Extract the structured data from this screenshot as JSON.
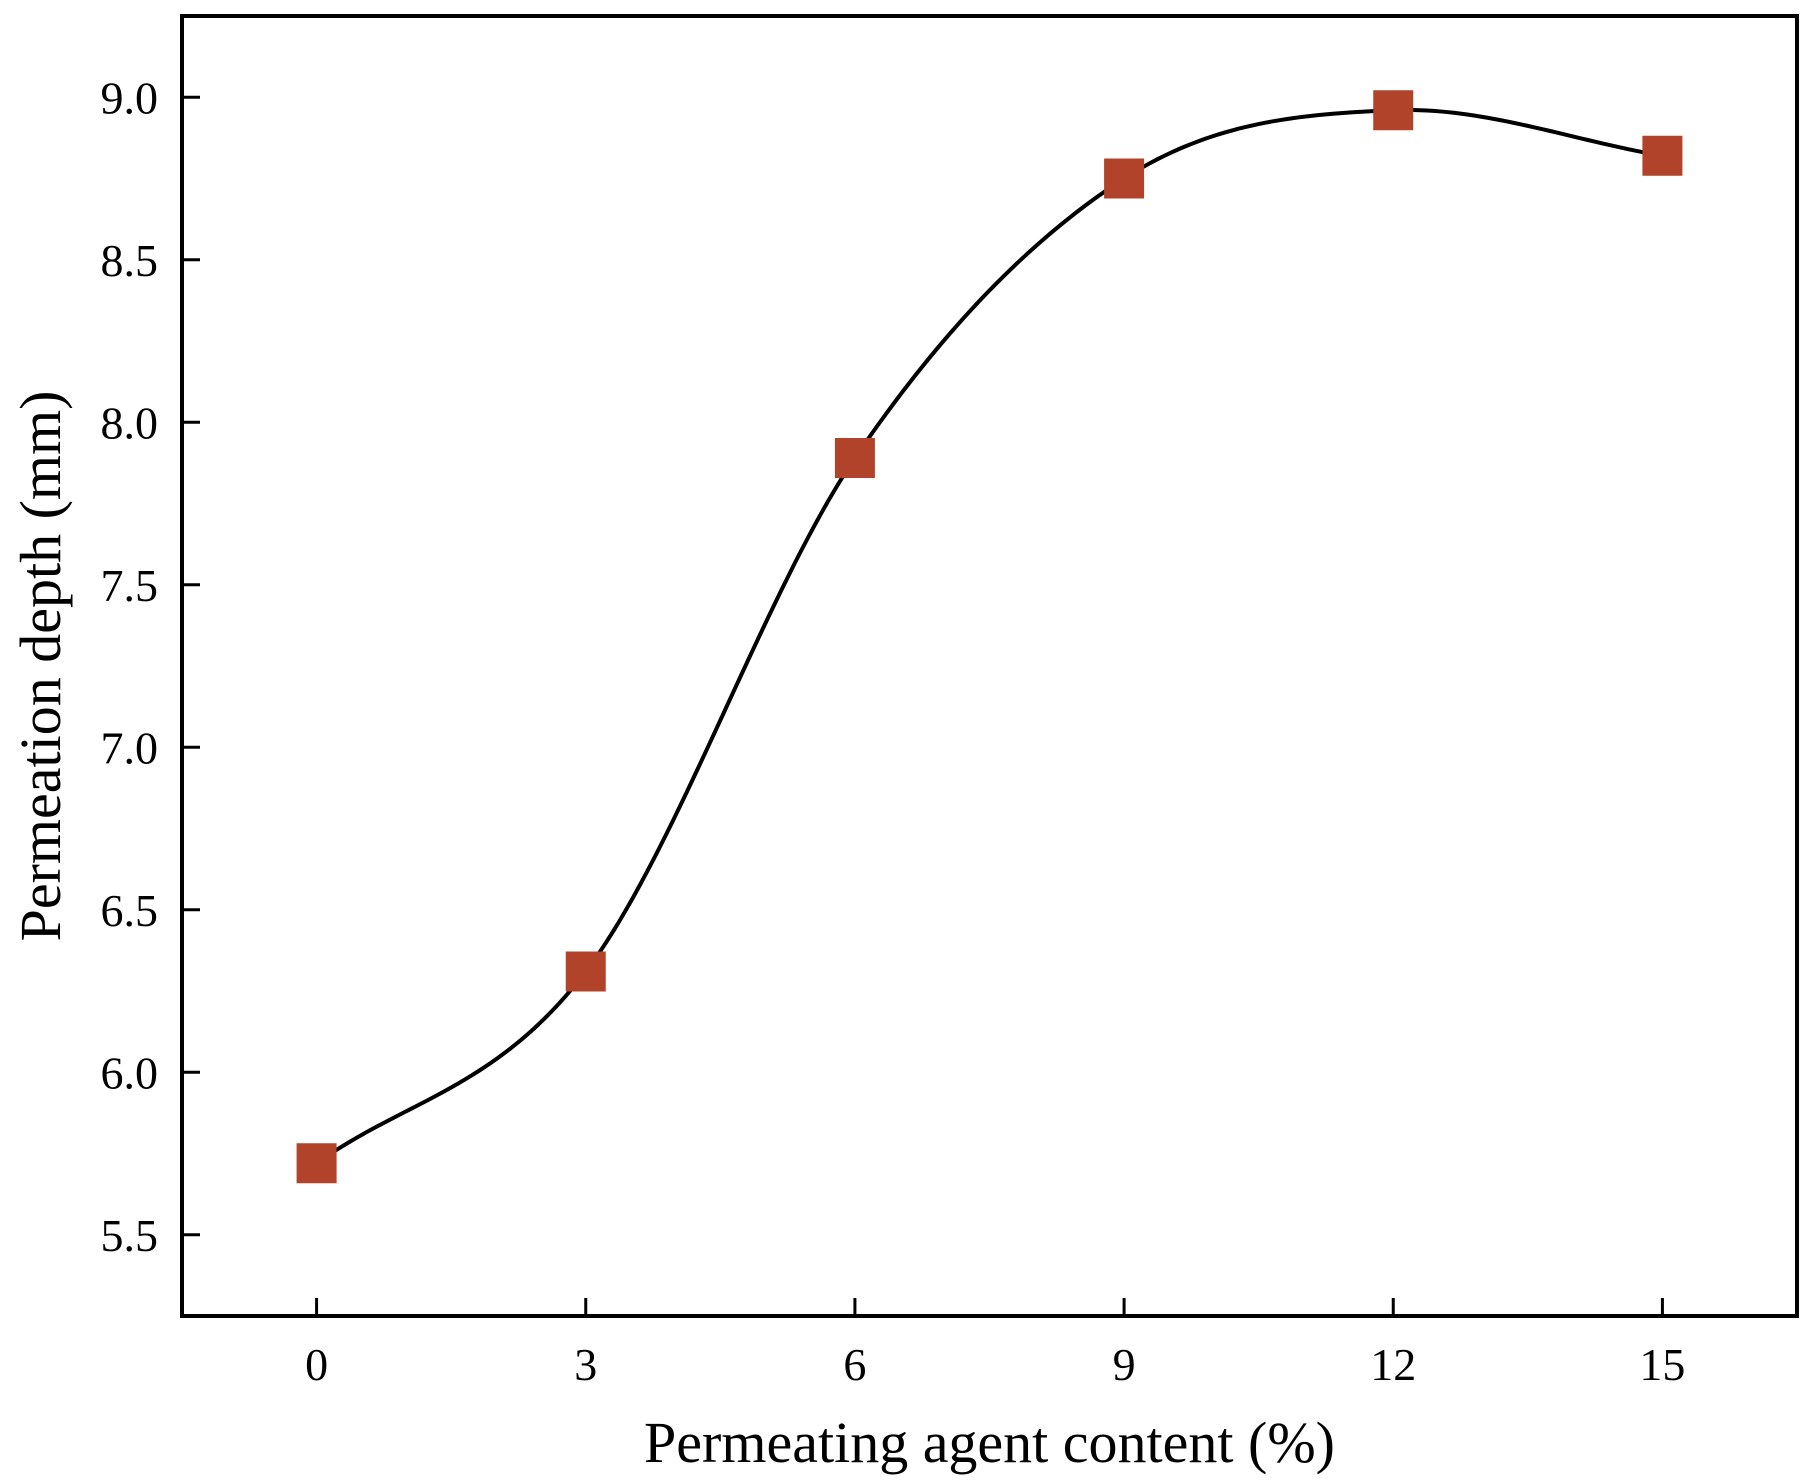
{
  "chart_data": {
    "type": "line",
    "title": "",
    "xlabel": "Permeating agent content (%)",
    "ylabel": "Permeation depth (mm)",
    "x": [
      0,
      3,
      6,
      9,
      12,
      15
    ],
    "series": [
      {
        "values": [
          5.72,
          6.31,
          7.89,
          8.75,
          8.96,
          8.82
        ],
        "marker": "square",
        "marker_color": "#b1432b",
        "line": "smooth",
        "line_color": "#000000"
      }
    ],
    "xlim": [
      -1.5,
      16.5
    ],
    "ylim": [
      5.25,
      9.25
    ],
    "xticks": [
      "0",
      "3",
      "6",
      "9",
      "12",
      "15"
    ],
    "yticks": [
      "5.5",
      "6.0",
      "6.5",
      "7.0",
      "7.5",
      "8.0",
      "8.5",
      "9.0"
    ],
    "grid": false,
    "legend": "none"
  }
}
